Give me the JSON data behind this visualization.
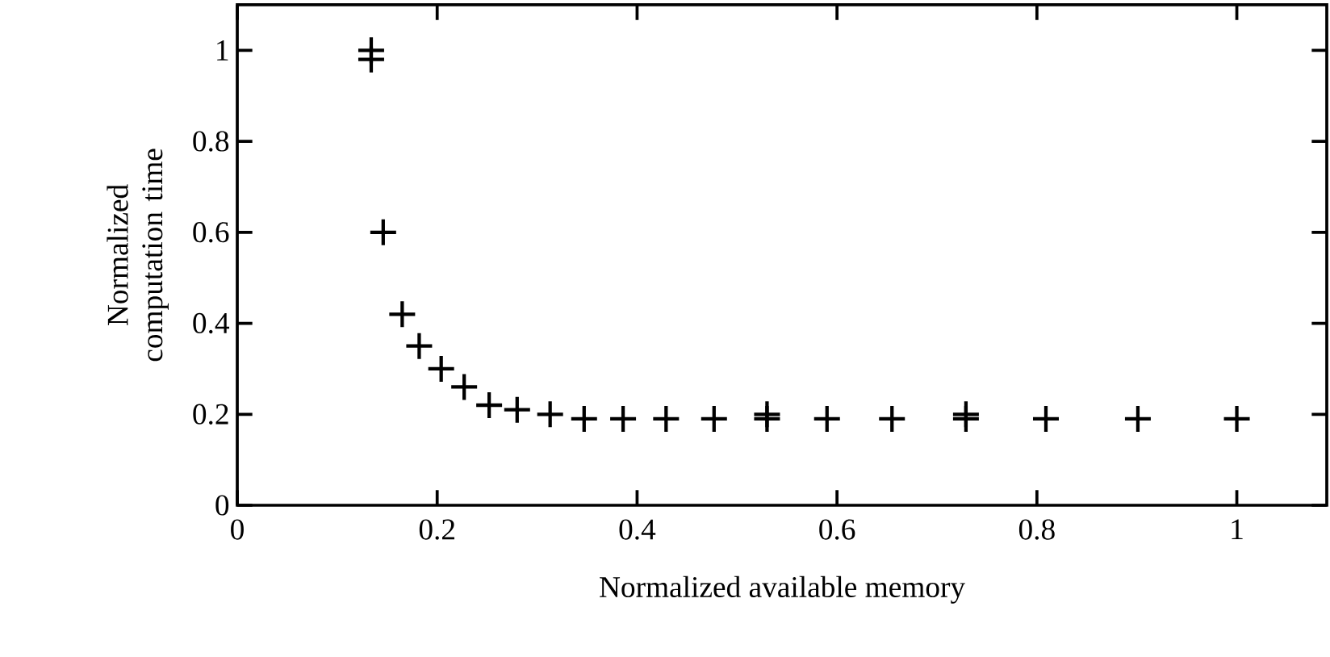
{
  "chart_data": {
    "type": "scatter",
    "xlabel": "Normalized available memory",
    "ylabel": "Normalized computation time",
    "x": [
      0.134,
      0.134,
      0.146,
      0.165,
      0.182,
      0.204,
      0.227,
      0.252,
      0.28,
      0.313,
      0.347,
      0.386,
      0.429,
      0.477,
      0.53,
      0.53,
      0.59,
      0.655,
      0.729,
      0.729,
      0.809,
      0.901,
      1.0
    ],
    "values": [
      1.0,
      0.98,
      0.6,
      0.42,
      0.35,
      0.3,
      0.26,
      0.22,
      0.21,
      0.2,
      0.19,
      0.19,
      0.19,
      0.19,
      0.19,
      0.2,
      0.19,
      0.19,
      0.19,
      0.2,
      0.19,
      0.19,
      0.19
    ],
    "color": "#000000",
    "marker": "cross",
    "xlim": [
      0,
      1.09
    ],
    "ylim": [
      0,
      1.1
    ],
    "xticks": [
      0,
      0.2,
      0.4,
      0.6,
      0.8,
      1
    ],
    "yticks": [
      0,
      0.2,
      0.4,
      0.6,
      0.8,
      1
    ]
  }
}
